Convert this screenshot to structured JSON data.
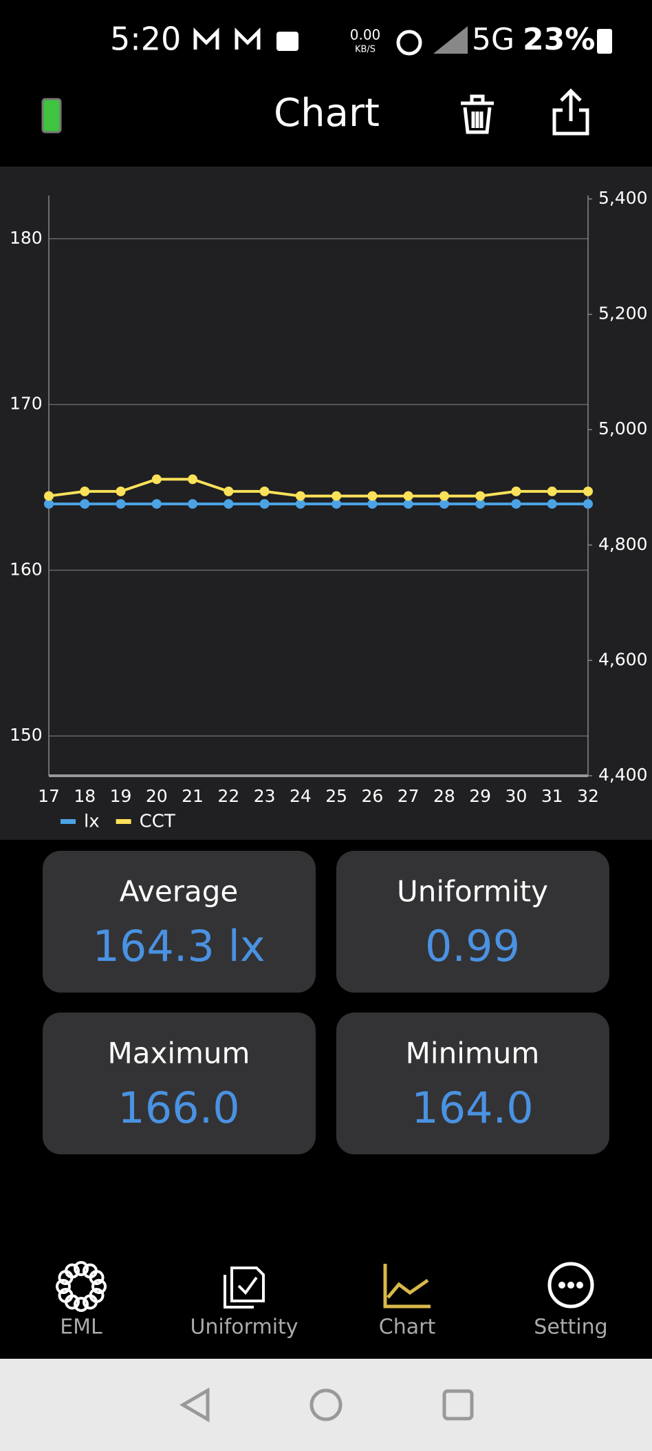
{
  "status_bar": {
    "time": "5:20",
    "net_speed": "0.00",
    "net_unit": "KB/S",
    "network": "5G",
    "battery": "23%"
  },
  "header": {
    "title": "Chart"
  },
  "chart_data": {
    "type": "line",
    "x": [
      17,
      18,
      19,
      20,
      21,
      22,
      23,
      24,
      25,
      26,
      27,
      28,
      29,
      30,
      31,
      32
    ],
    "xlim": [
      17,
      32
    ],
    "xticks": [
      17,
      18,
      19,
      20,
      21,
      22,
      23,
      24,
      25,
      26,
      27,
      28,
      29,
      30,
      31,
      32
    ],
    "ylim": [
      147.6,
      182.4
    ],
    "yticks": [
      150,
      160,
      170,
      180
    ],
    "y2lim": [
      4400,
      5400
    ],
    "y2ticks": [
      {
        "value": 4400,
        "label": "4,400"
      },
      {
        "value": 4600,
        "label": "4,600"
      },
      {
        "value": 4800,
        "label": "4,800"
      },
      {
        "value": 5000,
        "label": "5,000"
      },
      {
        "value": 5200,
        "label": "5,200"
      },
      {
        "value": 5400,
        "label": "5,400"
      }
    ],
    "grid": true,
    "legend": "bottom-left",
    "series": [
      {
        "name": "lx",
        "color": "#4ba3e6",
        "values": [
          164,
          164,
          164,
          164,
          164,
          164,
          164,
          164,
          164,
          164,
          164,
          164,
          164,
          164,
          164,
          164
        ]
      },
      {
        "name": "CCT",
        "color": "#fce15a",
        "axis": "y2",
        "values": [
          4885,
          4893,
          4893,
          4914,
          4914,
          4893,
          4893,
          4885,
          4885,
          4885,
          4885,
          4885,
          4885,
          4893,
          4893,
          4893
        ]
      }
    ]
  },
  "stats": [
    {
      "label": "Average",
      "value": "164.3 lx"
    },
    {
      "label": "Uniformity",
      "value": "0.99"
    },
    {
      "label": "Maximum",
      "value": "166.0"
    },
    {
      "label": "Minimum",
      "value": "164.0"
    }
  ],
  "nav": [
    {
      "label": "EML"
    },
    {
      "label": "Uniformity"
    },
    {
      "label": "Chart"
    },
    {
      "label": "Setting"
    }
  ]
}
